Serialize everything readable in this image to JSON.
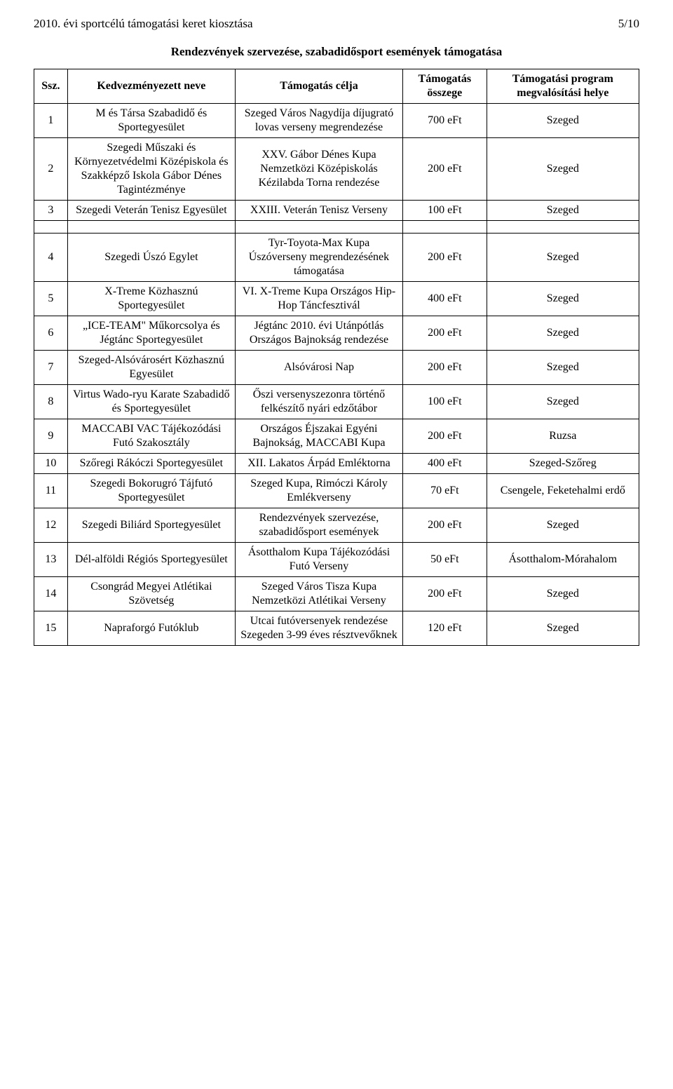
{
  "header": {
    "title": "2010. évi sportcélú támogatási keret kiosztása",
    "page": "5/10"
  },
  "subtitle": "Rendezvények szervezése, szabadidősport események támogatása",
  "columns": {
    "c1": "Ssz.",
    "c2": "Kedvezményezett neve",
    "c3": "Támogatás célja",
    "c4": "Támogatás összege",
    "c5": "Támogatási program megvalósítási helye"
  },
  "rows": [
    {
      "n": "1",
      "name": "M és Társa Szabadidő és Sportegyesület",
      "purpose": "Szeged Város Nagydíja díjugrató lovas verseny megrendezése",
      "amount": "700 eFt",
      "place": "Szeged"
    },
    {
      "n": "2",
      "name": "Szegedi Műszaki és Környezetvédelmi Középiskola és Szakképző Iskola Gábor Dénes Tagintézménye",
      "purpose": "XXV. Gábor Dénes Kupa Nemzetközi Középiskolás Kézilabda Torna rendezése",
      "amount": "200 eFt",
      "place": "Szeged"
    },
    {
      "n": "3",
      "name": "Szegedi Veterán Tenisz Egyesület",
      "purpose": "XXIII. Veterán Tenisz Verseny",
      "amount": "100 eFt",
      "place": "Szeged"
    },
    {
      "n": "4",
      "name": "Szegedi Úszó Egylet",
      "purpose": "Tyr-Toyota-Max Kupa Úszóverseny megrendezésének támogatása",
      "amount": "200 eFt",
      "place": "Szeged"
    },
    {
      "n": "5",
      "name": "X-Treme Közhasznú Sportegyesület",
      "purpose": "VI. X-Treme Kupa Országos Hip-Hop Táncfesztivál",
      "amount": "400 eFt",
      "place": "Szeged"
    },
    {
      "n": "6",
      "name": "„ICE-TEAM\" Műkorcsolya és Jégtánc Sportegyesület",
      "purpose": "Jégtánc 2010. évi Utánpótlás Országos Bajnokság rendezése",
      "amount": "200 eFt",
      "place": "Szeged"
    },
    {
      "n": "7",
      "name": "Szeged-Alsóvárosért Közhasznú Egyesület",
      "purpose": "Alsóvárosi Nap",
      "amount": "200 eFt",
      "place": "Szeged"
    },
    {
      "n": "8",
      "name": "Virtus Wado-ryu Karate Szabadidő és Sportegyesület",
      "purpose": "Őszi versenyszezonra történő felkészítő nyári edzőtábor",
      "amount": "100 eFt",
      "place": "Szeged"
    },
    {
      "n": "9",
      "name": "MACCABI VAC Tájékozódási Futó Szakosztály",
      "purpose": "Országos Éjszakai Egyéni Bajnokság, MACCABI Kupa",
      "amount": "200 eFt",
      "place": "Ruzsa"
    },
    {
      "n": "10",
      "name": "Szőregi Rákóczi Sportegyesület",
      "purpose": "XII. Lakatos Árpád Emléktorna",
      "amount": "400 eFt",
      "place": "Szeged-Szőreg"
    },
    {
      "n": "11",
      "name": "Szegedi Bokorugró Tájfutó Sportegyesület",
      "purpose": "Szeged Kupa, Rimóczi Károly Emlékverseny",
      "amount": "70 eFt",
      "place": "Csengele, Feketehalmi erdő"
    },
    {
      "n": "12",
      "name": "Szegedi Biliárd Sportegyesület",
      "purpose": "Rendezvények szervezése, szabadidősport események",
      "amount": "200 eFt",
      "place": "Szeged"
    },
    {
      "n": "13",
      "name": "Dél-alföldi Régiós Sportegyesület",
      "purpose": "Ásotthalom Kupa Tájékozódási Futó Verseny",
      "amount": "50 eFt",
      "place": "Ásotthalom-Mórahalom"
    },
    {
      "n": "14",
      "name": "Csongrád Megyei Atlétikai Szövetség",
      "purpose": "Szeged Város Tisza Kupa Nemzetközi Atlétikai Verseny",
      "amount": "200 eFt",
      "place": "Szeged"
    },
    {
      "n": "15",
      "name": "Napraforgó Futóklub",
      "purpose": "Utcai futóversenyek rendezése Szegeden 3-99 éves résztvevőknek",
      "amount": "120 eFt",
      "place": "Szeged"
    }
  ]
}
